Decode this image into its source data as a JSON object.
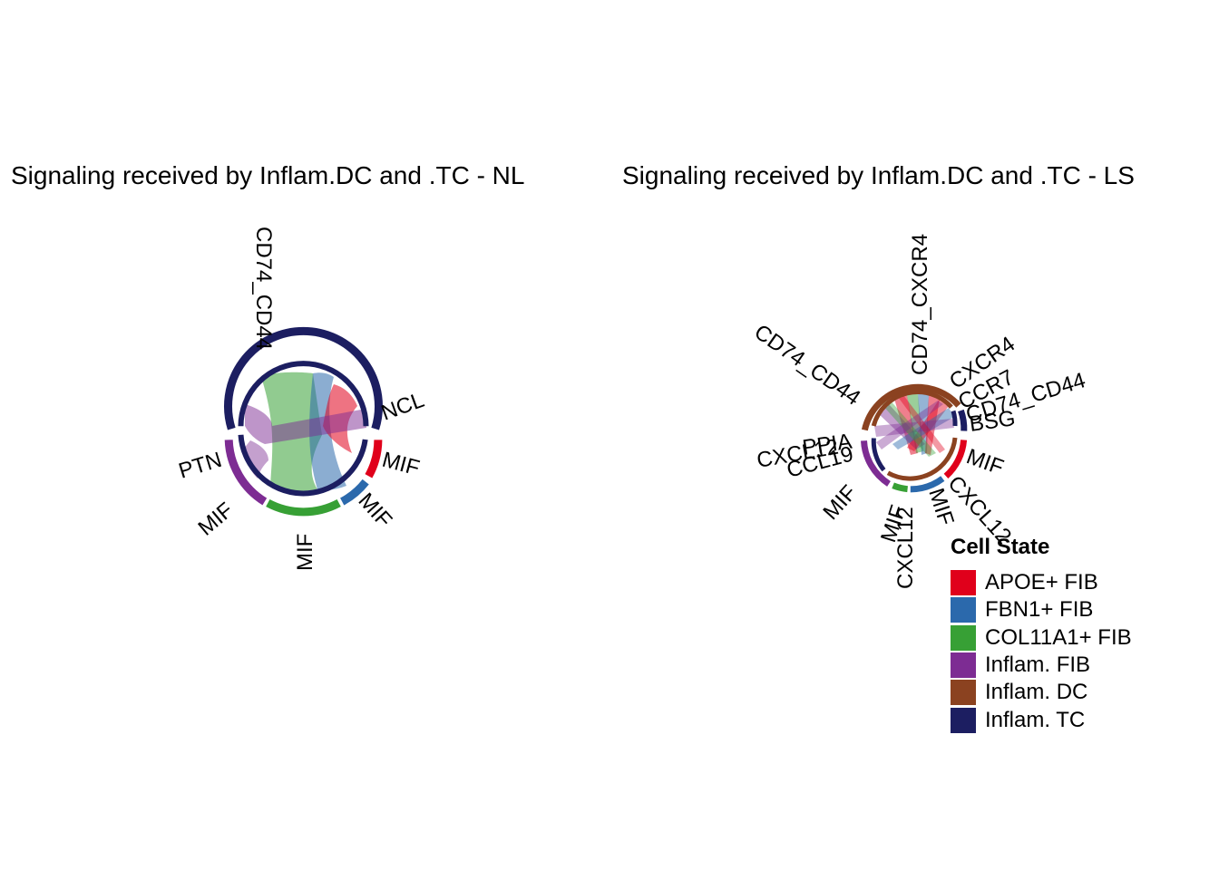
{
  "panels": [
    {
      "title": "Signaling received by Inflam.DC and .TC - NL"
    },
    {
      "title": "Signaling received by Inflam.DC and .TC - LS"
    }
  ],
  "cell_states": [
    {
      "name": "APOE+ FIB",
      "color": "#E0001B"
    },
    {
      "name": "FBN1+ FIB",
      "color": "#2B69AC"
    },
    {
      "name": "COL11A1+ FIB",
      "color": "#37A035"
    },
    {
      "name": "Inflam. FIB",
      "color": "#7D2C93"
    },
    {
      "name": "Inflam. DC",
      "color": "#8B4220"
    },
    {
      "name": "Inflam. TC",
      "color": "#1C1E61"
    }
  ],
  "legend": {
    "title": "Cell State"
  },
  "nl_labels": {
    "cd74_cd44": "CD74_CD44",
    "ncl": "NCL",
    "mif_apoe": "MIF",
    "mif_fbn1": "MIF",
    "mif_col11a1": "MIF",
    "mif_inflam": "MIF",
    "ptn": "PTN"
  },
  "ls_labels": {
    "cd74_cxcr4": "CD74_CXCR4",
    "cd74_cd44_dc": "CD74_CD44",
    "cxcr4": "CXCR4",
    "ccr7": "CCR7",
    "cd74_cd44_tc": "CD74_CD44",
    "bsg": "BSG",
    "mif_apoe": "MIF",
    "cxcl12_apoe": "CXCL12",
    "mif_fbn1": "MIF",
    "cxcl12_col11a1": "CXCL12",
    "mif_col11a1": "MIF",
    "mif_inflam": "MIF",
    "ccl19": "CCL19",
    "cxcl12_inflam": "CXCL12",
    "ppia": "PPIA"
  }
}
